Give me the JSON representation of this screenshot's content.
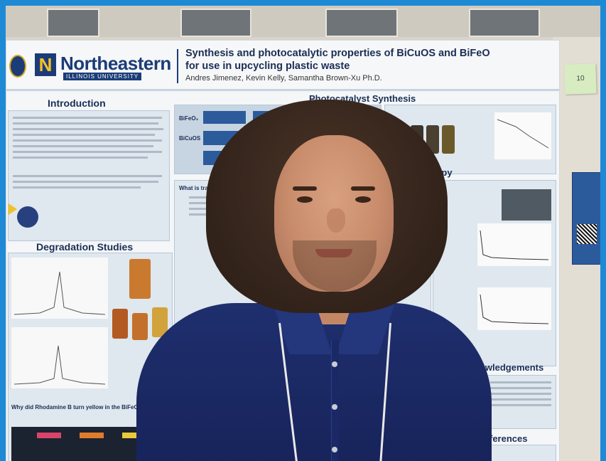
{
  "poster": {
    "logo_name": "Northeastern",
    "logo_subtitle": "ILLINOIS UNIVERSITY",
    "title_line1": "Synthesis and photocatalytic properties of BiCuOS and BiFeO",
    "title_line2": "for use in upcycling plastic waste",
    "authors": "Andres Jimenez, Kevin Kelly, Samantha Brown-Xu Ph.D.",
    "sections": {
      "introduction": "Introduction",
      "photocatalyst_synthesis": "Photocatalyst Synthesis",
      "degradation_studies": "Degradation Studies",
      "spectroscopy_fragment": "scopy",
      "acknowledgements_fragment": "nowledgements",
      "references_fragment": "ferences",
      "synthesis_label_1": "BiFeO₃",
      "synthesis_label_2": "BiCuOS",
      "transient_question": "What is transient abs",
      "rhodamine_question": "Why did Rhodamine B turn yellow in the BiFeO₃ sam"
    }
  },
  "sticky_note": {
    "text": "10"
  },
  "colors": {
    "frame_border": "#1e8ad6",
    "brand_navy": "#1b3c77",
    "brand_gold": "#f6c026",
    "shirt": "#1f2f6e"
  }
}
